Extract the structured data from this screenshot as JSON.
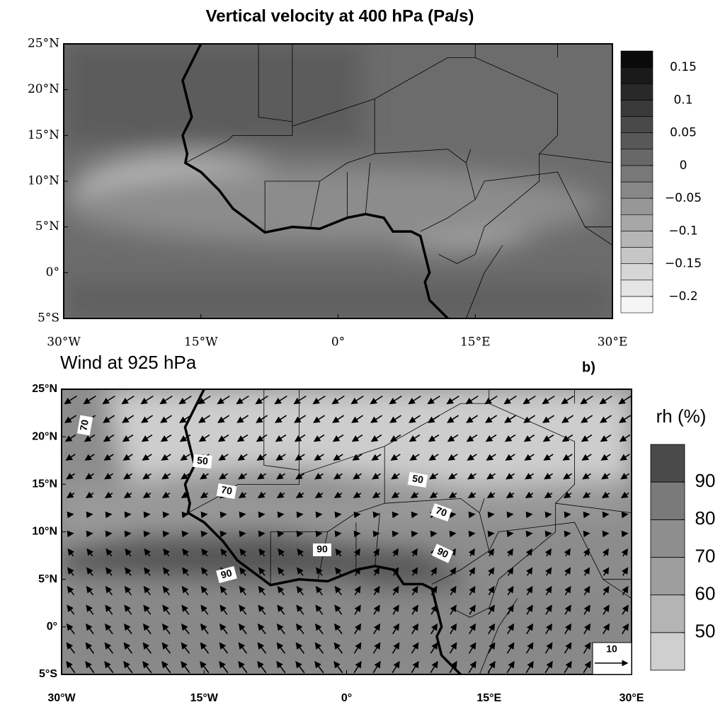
{
  "top_panel": {
    "title": "Vertical velocity at 400 hPa  (Pa/s)",
    "y_labels": [
      "25°N",
      "20°N",
      "15°N",
      "10°N",
      "5°N",
      "0°",
      "5°S"
    ],
    "x_labels": [
      "30°W",
      "15°W",
      "0°",
      "15°E",
      "30°E"
    ],
    "colorbar": {
      "lim": [
        -0.225,
        0.175
      ],
      "ticks": [
        {
          "value": 0.15,
          "label": "0.15"
        },
        {
          "value": 0.1,
          "label": "0.1"
        },
        {
          "value": 0.05,
          "label": "0.05"
        },
        0,
        {
          "value": -0.05,
          "label": "−0.05"
        },
        {
          "value": -0.1,
          "label": "−0.1"
        },
        {
          "value": -0.15,
          "label": "−0.15"
        },
        {
          "value": -0.2,
          "label": "−0.2"
        }
      ]
    }
  },
  "bottom_panel": {
    "title": "Wind at 925 hPa",
    "panel_label": "b)",
    "y_labels": [
      "25°N",
      "20°N",
      "15°N",
      "10°N",
      "5°N",
      "0°",
      "5°S"
    ],
    "x_labels": [
      "30°W",
      "15°W",
      "0°",
      "15°E",
      "30°E"
    ],
    "colorbar": {
      "title": "rh (%)",
      "lim": [
        40,
        100
      ],
      "ticks": [
        90,
        80,
        70,
        60,
        50
      ]
    },
    "contour_labels": [
      70,
      50,
      70,
      50,
      70,
      90,
      90,
      90
    ],
    "reference_vector": 10
  }
}
